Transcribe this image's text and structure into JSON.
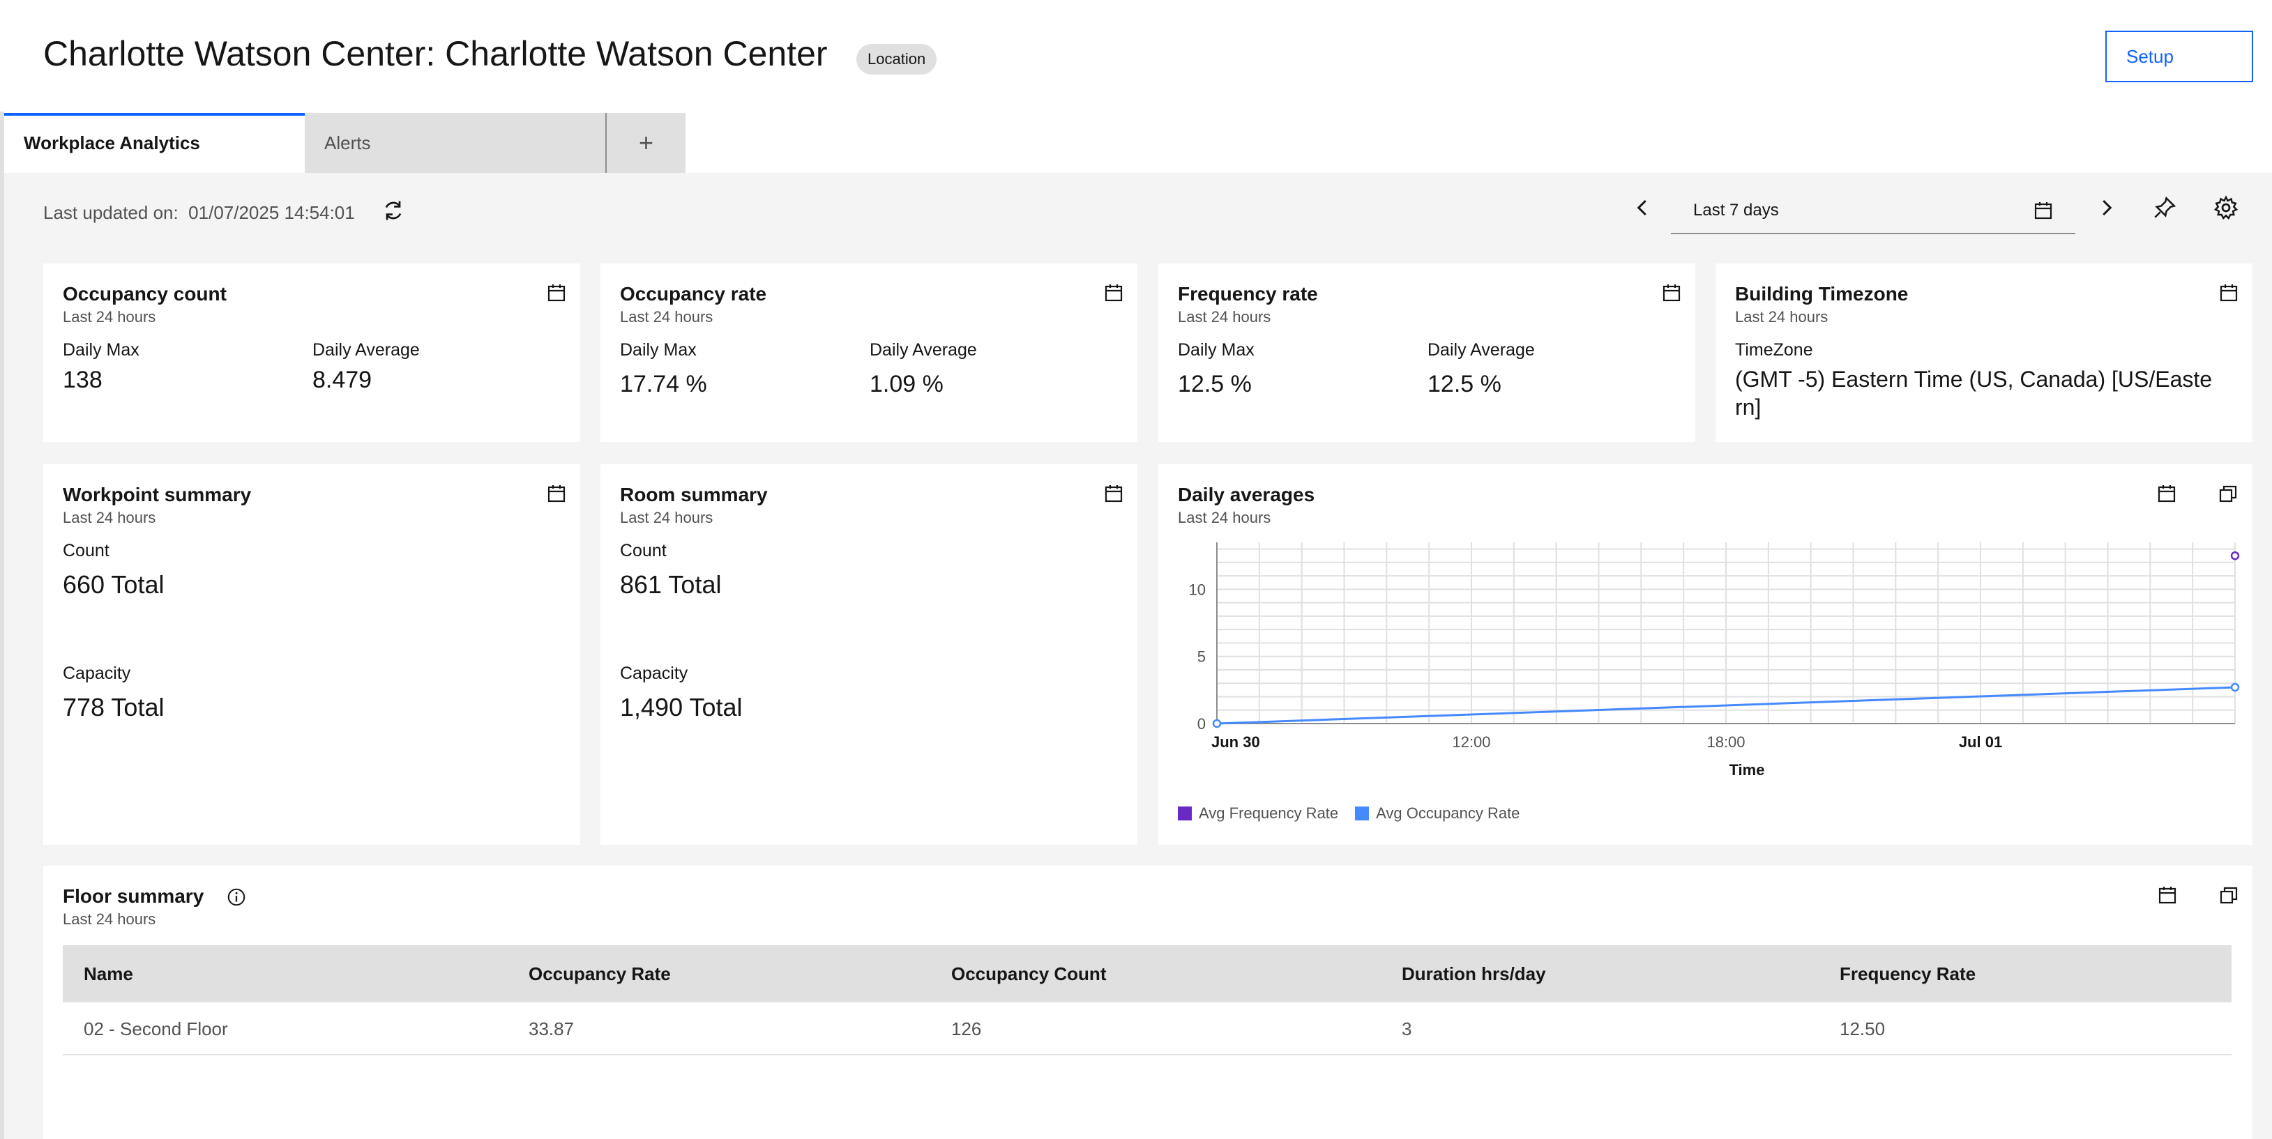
{
  "header": {
    "title": "Charlotte Watson Center: Charlotte Watson Center",
    "tag": "Location",
    "setup_label": "Setup"
  },
  "tabs": [
    {
      "label": "Workplace Analytics",
      "active": true
    },
    {
      "label": "Alerts",
      "active": false
    },
    {
      "label": "+",
      "active": false
    }
  ],
  "toolbar": {
    "last_updated_label": "Last updated on:",
    "last_updated_value": "01/07/2025 14:54:01",
    "date_range": "Last 7 days"
  },
  "cards": {
    "occupancy_count": {
      "title": "Occupancy count",
      "subtitle": "Last 24 hours",
      "max_label": "Daily Max",
      "max_value": "138",
      "avg_label": "Daily Average",
      "avg_value": "8.479"
    },
    "occupancy_rate": {
      "title": "Occupancy rate",
      "subtitle": "Last 24 hours",
      "max_label": "Daily Max",
      "max_value": "17.74 %",
      "avg_label": "Daily Average",
      "avg_value": "1.09 %"
    },
    "frequency_rate": {
      "title": "Frequency rate",
      "subtitle": "Last 24 hours",
      "max_label": "Daily Max",
      "max_value": "12.5 %",
      "avg_label": "Daily Average",
      "avg_value": "12.5 %"
    },
    "building_timezone": {
      "title": "Building Timezone",
      "subtitle": "Last 24 hours",
      "tz_label": "TimeZone",
      "tz_value_line1": "(GMT -5) Eastern Time (US, Canada) [US/Easte",
      "tz_value_line2": "rn]"
    },
    "workpoint_summary": {
      "title": "Workpoint summary",
      "subtitle": "Last 24 hours",
      "count_label": "Count",
      "count_value": "660 Total",
      "capacity_label": "Capacity",
      "capacity_value": "778 Total"
    },
    "room_summary": {
      "title": "Room summary",
      "subtitle": "Last 24 hours",
      "count_label": "Count",
      "count_value": "861 Total",
      "capacity_label": "Capacity",
      "capacity_value": "1,490 Total"
    },
    "daily_averages": {
      "title": "Daily averages",
      "subtitle": "Last 24 hours"
    },
    "floor_summary": {
      "title": "Floor summary",
      "subtitle": "Last 24 hours"
    }
  },
  "floor_table": {
    "columns": [
      "Name",
      "Occupancy Rate",
      "Occupancy Count",
      "Duration hrs/day",
      "Frequency Rate"
    ],
    "rows": [
      [
        "02 - Second Floor",
        "33.87",
        "126",
        "3",
        "12.50"
      ]
    ]
  },
  "colors": {
    "accent": "#0f62fe",
    "frequency_series": "#6929c4",
    "occupancy_series": "#4589ff"
  },
  "chart_data": {
    "type": "line",
    "title": "Daily averages",
    "subtitle": "Last 24 hours",
    "xlabel": "Time",
    "ylabel": "",
    "x_ticks": [
      "Jun 30",
      "12:00",
      "18:00",
      "Jul 01"
    ],
    "y_ticks": [
      0,
      5,
      10
    ],
    "ylim": [
      0,
      13.5
    ],
    "x_range_hours": [
      0,
      24
    ],
    "grid": true,
    "legend_position": "bottom-left",
    "series": [
      {
        "name": "Avg Frequency Rate",
        "color": "#6929c4",
        "x_hours": [
          24
        ],
        "values": [
          12.5
        ]
      },
      {
        "name": "Avg Occupancy Rate",
        "color": "#4589ff",
        "x_hours": [
          0,
          24
        ],
        "values": [
          0,
          2.7
        ]
      }
    ]
  }
}
